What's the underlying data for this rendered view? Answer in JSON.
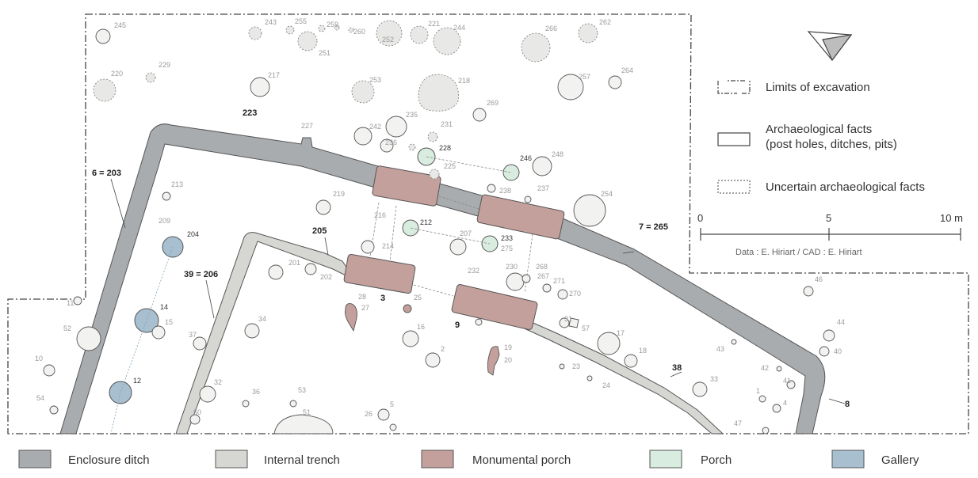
{
  "legend": {
    "limits": "Limits of excavation",
    "facts_line1": "Archaeological facts",
    "facts_line2": "(post holes, ditches, pits)",
    "uncertain": "Uncertain archaeological facts"
  },
  "scale": {
    "zero": "0",
    "mid": "5",
    "end": "10 m"
  },
  "credit": "Data : E. Hiriart / CAD : E. Hiriart",
  "bottom_legend": [
    {
      "label": "Enclosure ditch",
      "color": "#a9acae"
    },
    {
      "label": "Internal trench",
      "color": "#d6d6d2"
    },
    {
      "label": "Monumental porch",
      "color": "#c4a09c"
    },
    {
      "label": "Porch",
      "color": "#d8ecdf"
    },
    {
      "label": "Gallery",
      "color": "#a7bfcf"
    }
  ],
  "labels": {
    "l245": "245",
    "l243": "243",
    "l255": "255",
    "l259": "259",
    "l260": "260",
    "l252": "252",
    "l221": "221",
    "l244": "244",
    "l251": "251",
    "l266": "266",
    "l262": "262",
    "l220": "220",
    "l229": "229",
    "l217": "217",
    "l253": "253",
    "l218": "218",
    "l257": "257",
    "l264": "264",
    "l269": "269",
    "l235": "235",
    "l231": "231",
    "l242": "242",
    "l236": "236",
    "l227": "227",
    "l228": "228",
    "l246": "246",
    "l248": "248",
    "l225": "225",
    "l238": "238",
    "l237": "237",
    "l213": "213",
    "l219": "219",
    "l254": "254",
    "l209": "209",
    "l216": "216",
    "l212": "212",
    "l204": "204",
    "l214": "214",
    "l207": "207",
    "l233": "233",
    "l275": "275",
    "l201": "201",
    "l202": "202",
    "l230": "230",
    "l268": "268",
    "l232": "232",
    "l267": "267",
    "l271": "271",
    "l270": "270",
    "l11": "11",
    "l14": "14",
    "l15": "15",
    "l28": "28",
    "l27": "27",
    "l25": "25",
    "l52": "52",
    "l34": "34",
    "l16": "16",
    "l31": "31",
    "l57": "57",
    "l17": "17",
    "l46": "46",
    "l37": "37",
    "l2": "2",
    "l19": "19",
    "l20": "20",
    "l18": "18",
    "l43": "43",
    "l44": "44",
    "l40": "40",
    "l10": "10",
    "l23": "23",
    "l42": "42",
    "l12": "12",
    "l32": "32",
    "l24": "24",
    "l33": "33",
    "l41": "41",
    "l54": "54",
    "l36": "36",
    "l53": "53",
    "l1": "1",
    "l4": "4",
    "l50": "50",
    "l51": "51",
    "l26": "26",
    "l5": "5",
    "l47": "47",
    "b223": "223",
    "b6_203": "6 = 203",
    "b205": "205",
    "b39_206": "39 = 206",
    "b3": "3",
    "b9": "9",
    "b7_265": "7 = 265",
    "b38": "38",
    "b8": "8"
  }
}
